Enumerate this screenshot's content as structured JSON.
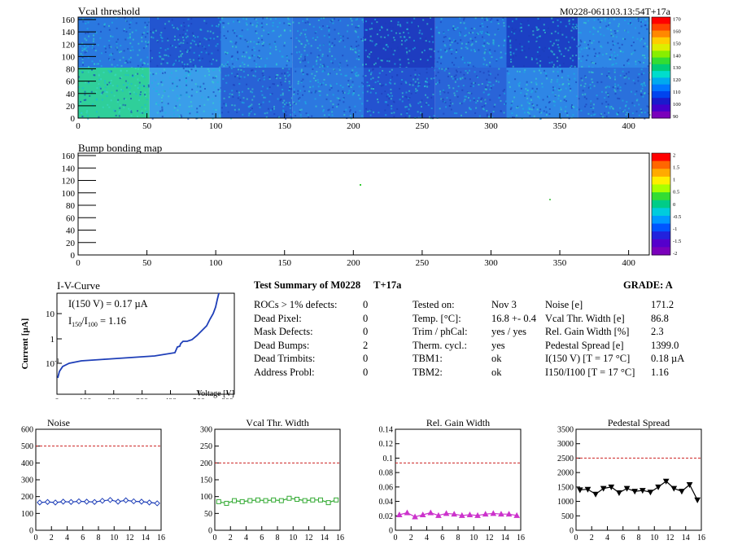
{
  "vcal_map": {
    "title": "Vcal threshold",
    "module_label": "M0228-061103.13:54T+17a",
    "x_ticks": [
      "0",
      "50",
      "100",
      "150",
      "200",
      "250",
      "300",
      "350",
      "400"
    ],
    "y_ticks": [
      "0",
      "20",
      "40",
      "60",
      "80",
      "100",
      "120",
      "140",
      "160"
    ],
    "colorbar_ticks": [
      "90",
      "100",
      "110",
      "120",
      "130",
      "140",
      "150",
      "160",
      "170"
    ]
  },
  "bump_map": {
    "title": "Bump bonding map",
    "x_ticks": [
      "0",
      "50",
      "100",
      "150",
      "200",
      "250",
      "300",
      "350",
      "400"
    ],
    "y_ticks": [
      "0",
      "20",
      "40",
      "60",
      "80",
      "100",
      "120",
      "140",
      "160"
    ],
    "colorbar_ticks": [
      "-2",
      "-1.5",
      "-1",
      "-0.5",
      "0",
      "0.5",
      "1",
      "1.5",
      "2"
    ]
  },
  "iv_curve": {
    "title": "I-V-Curve",
    "annot1": "I(150 V) = 0.17 µA",
    "annot2_main": "I",
    "annot2_sub1": "150",
    "annot2_slash": "/I",
    "annot2_sub2": "100",
    "annot2_val": " =  1.16",
    "ylabel": "Current [µA]",
    "xlabel": "Voltage [V]",
    "x_ticks": [
      "0",
      "100",
      "200",
      "300",
      "400",
      "500",
      "600"
    ],
    "y_ticks": [
      "10",
      "1",
      "10"
    ]
  },
  "summary": {
    "title": "Test Summary of M0228",
    "temp_tag": "T+17a",
    "grade": "GRADE:  A",
    "left": [
      {
        "label": "ROCs > 1% defects:",
        "value": "0"
      },
      {
        "label": "Dead Pixel:",
        "value": "0"
      },
      {
        "label": "Mask Defects:",
        "value": "0"
      },
      {
        "label": "Dead Bumps:",
        "value": "2"
      },
      {
        "label": "Dead Trimbits:",
        "value": "0"
      },
      {
        "label": "Address Probl:",
        "value": "0"
      }
    ],
    "mid": [
      {
        "label": "Tested on:",
        "value": "Nov 3"
      },
      {
        "label": "Temp. [°C]:",
        "value": "16.8 +- 0.4"
      },
      {
        "label": "Trim / phCal:",
        "value": "yes / yes"
      },
      {
        "label": "Therm. cycl.:",
        "value": "yes"
      },
      {
        "label": "TBM1:",
        "value": "ok"
      },
      {
        "label": "TBM2:",
        "value": "ok"
      }
    ],
    "right": [
      {
        "label": "Noise [e]",
        "value": "171.2"
      },
      {
        "label": "Vcal Thr. Width [e]",
        "value": "86.8"
      },
      {
        "label": "Rel. Gain Width [%]",
        "value": "2.3"
      },
      {
        "label": "Pedestal Spread [e]",
        "value": "1399.0"
      },
      {
        "label": "I(150 V) [T = 17 °C]",
        "value": "0.18 µA"
      },
      {
        "label": "I150/I100  [T = 17 °C]",
        "value": "1.16"
      }
    ]
  },
  "chart_data": [
    {
      "type": "line",
      "title": "Noise",
      "x": [
        0,
        1,
        2,
        3,
        4,
        5,
        6,
        7,
        8,
        9,
        10,
        11,
        12,
        13,
        14,
        15
      ],
      "values": [
        165,
        168,
        165,
        170,
        168,
        172,
        170,
        168,
        175,
        180,
        170,
        178,
        172,
        170,
        165,
        160
      ],
      "ylim": [
        0,
        600
      ],
      "xlim": [
        0,
        16
      ],
      "threshold": 500,
      "color": "#1f3fb8",
      "marker": "diamond",
      "y_ticks": [
        "0",
        "100",
        "200",
        "300",
        "400",
        "500",
        "600"
      ],
      "x_ticks": [
        "0",
        "2",
        "4",
        "6",
        "8",
        "10",
        "12",
        "14",
        "16"
      ]
    },
    {
      "type": "line",
      "title": "Vcal Thr. Width",
      "x": [
        0,
        1,
        2,
        3,
        4,
        5,
        6,
        7,
        8,
        9,
        10,
        11,
        12,
        13,
        14,
        15
      ],
      "values": [
        85,
        80,
        88,
        85,
        88,
        90,
        88,
        90,
        88,
        95,
        92,
        88,
        90,
        90,
        82,
        90
      ],
      "ylim": [
        0,
        300
      ],
      "xlim": [
        0,
        16
      ],
      "threshold": 200,
      "color": "#33aa33",
      "marker": "square",
      "y_ticks": [
        "0",
        "50",
        "100",
        "150",
        "200",
        "250",
        "300"
      ],
      "x_ticks": [
        "0",
        "2",
        "4",
        "6",
        "8",
        "10",
        "12",
        "14",
        "16"
      ]
    },
    {
      "type": "line",
      "title": "Rel. Gain Width",
      "x": [
        0,
        1,
        2,
        3,
        4,
        5,
        6,
        7,
        8,
        9,
        10,
        11,
        12,
        13,
        14,
        15
      ],
      "values": [
        0.023,
        0.026,
        0.02,
        0.023,
        0.026,
        0.022,
        0.025,
        0.024,
        0.022,
        0.023,
        0.022,
        0.024,
        0.025,
        0.024,
        0.024,
        0.022
      ],
      "ylim": [
        0,
        0.15
      ],
      "xlim": [
        0,
        16
      ],
      "threshold": 0.1,
      "color": "#cc33cc",
      "marker": "triangle",
      "y_ticks": [
        "0",
        "0.02",
        "0.04",
        "0.06",
        "0.08",
        "0.1",
        "0.12",
        "0.14"
      ],
      "x_ticks": [
        "0",
        "2",
        "4",
        "6",
        "8",
        "10",
        "12",
        "14",
        "16"
      ]
    },
    {
      "type": "line",
      "title": "Pedestal Spread",
      "x": [
        0,
        1,
        2,
        3,
        4,
        5,
        6,
        7,
        8,
        9,
        10,
        11,
        12,
        13,
        14,
        15
      ],
      "values": [
        1400,
        1420,
        1250,
        1450,
        1500,
        1300,
        1450,
        1350,
        1380,
        1320,
        1500,
        1700,
        1450,
        1350,
        1580,
        1050
      ],
      "ylim": [
        0,
        3500
      ],
      "xlim": [
        0,
        16
      ],
      "threshold": 2500,
      "color": "#000000",
      "marker": "triangle-down",
      "y_ticks": [
        "0",
        "500",
        "1000",
        "1500",
        "2000",
        "2500",
        "3000",
        "3500"
      ],
      "x_ticks": [
        "0",
        "2",
        "4",
        "6",
        "8",
        "10",
        "12",
        "14",
        "16"
      ]
    }
  ]
}
